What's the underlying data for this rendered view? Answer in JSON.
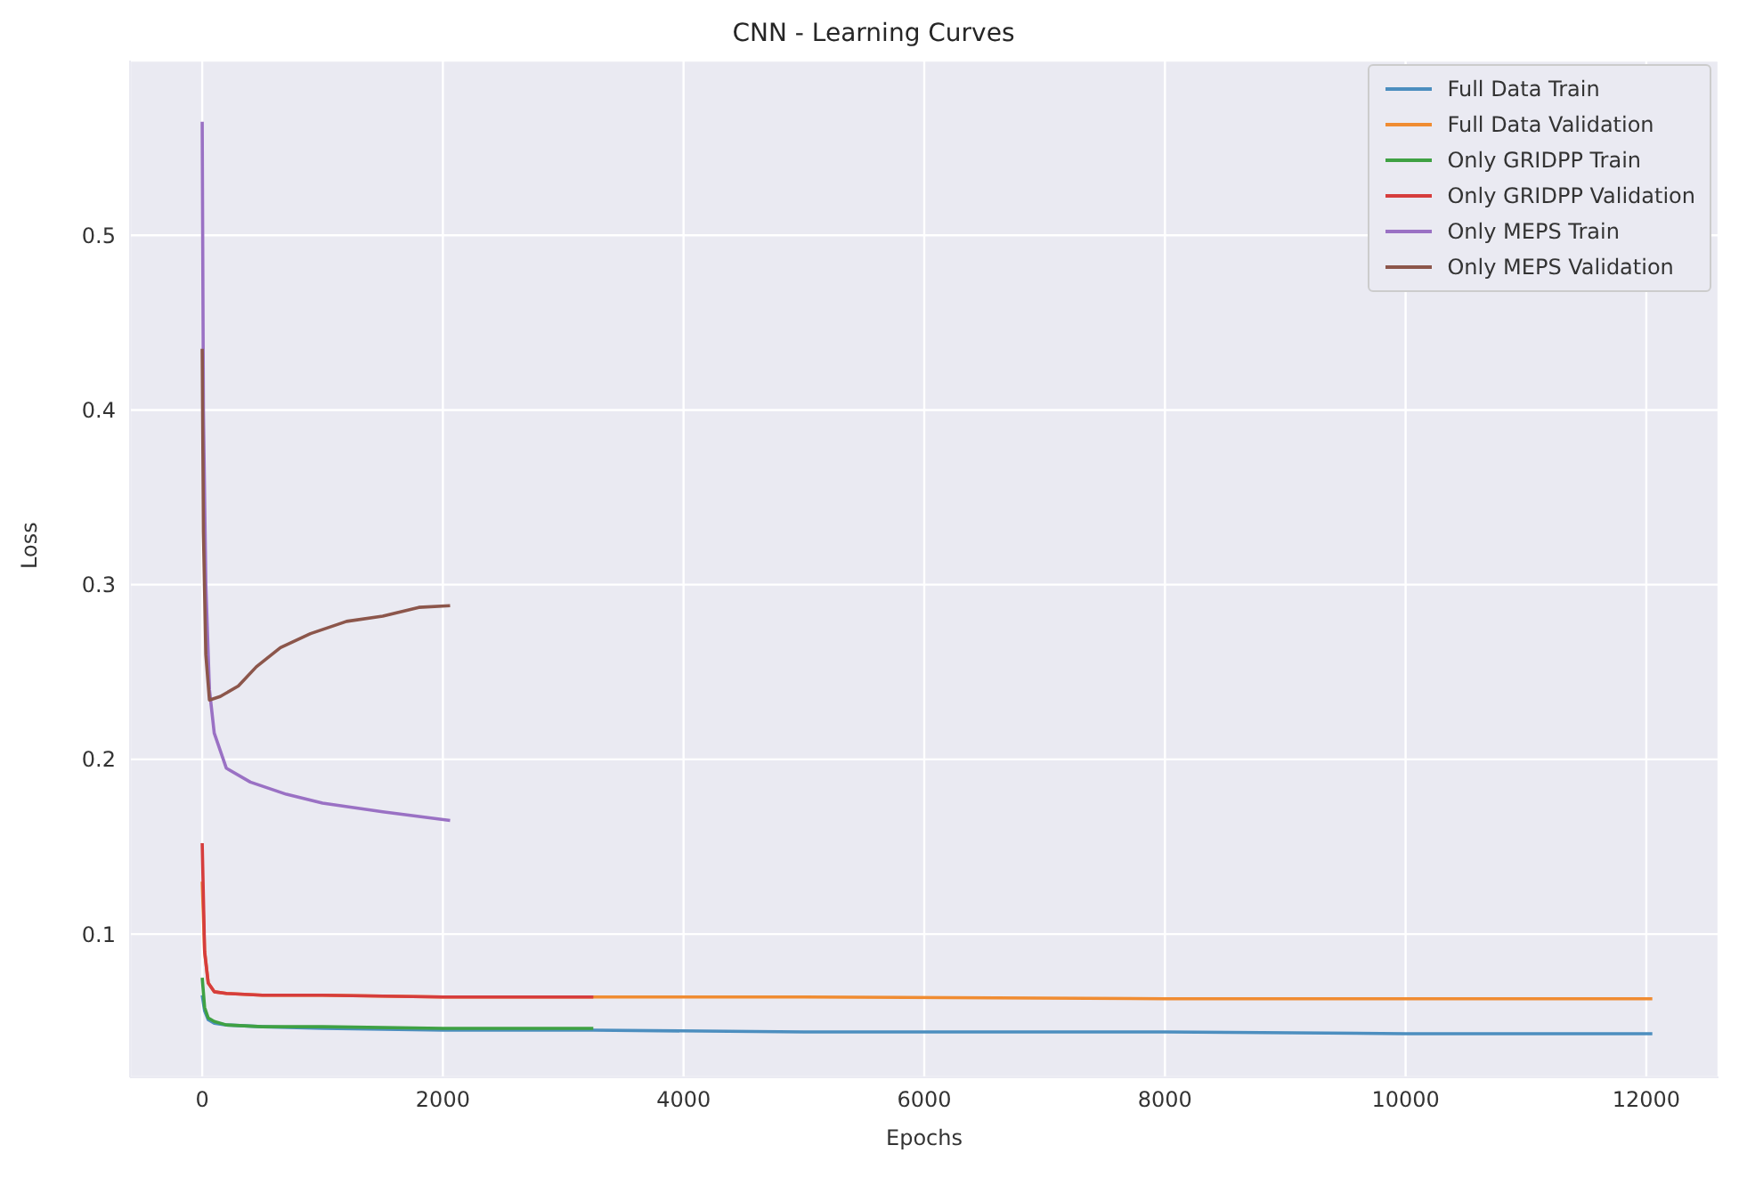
{
  "chart_data": {
    "type": "line",
    "title": "CNN - Learning Curves",
    "xlabel": "Epochs",
    "ylabel": "Loss",
    "xlim": [
      -600,
      12600
    ],
    "ylim": [
      0.018,
      0.6
    ],
    "xticks": [
      0,
      2000,
      4000,
      6000,
      8000,
      10000,
      12000
    ],
    "yticks": [
      0.1,
      0.2,
      0.3,
      0.4,
      0.5
    ],
    "grid": true,
    "legend": "top right",
    "marker": "none",
    "line_style": "solid",
    "series": [
      {
        "name": "Full Data Train",
        "color": "#4c8ebf",
        "x": [
          0,
          20,
          50,
          100,
          200,
          500,
          1000,
          2000,
          3250,
          5000,
          8000,
          10000,
          12050
        ],
        "values": [
          0.065,
          0.056,
          0.051,
          0.049,
          0.048,
          0.047,
          0.046,
          0.045,
          0.045,
          0.044,
          0.044,
          0.043,
          0.043
        ]
      },
      {
        "name": "Full Data Validation",
        "color": "#f08c32",
        "x": [
          0,
          20,
          50,
          100,
          200,
          500,
          1000,
          2000,
          3250,
          5000,
          8000,
          10000,
          12050
        ],
        "values": [
          0.13,
          0.09,
          0.072,
          0.067,
          0.066,
          0.065,
          0.065,
          0.064,
          0.064,
          0.064,
          0.063,
          0.063,
          0.063
        ]
      },
      {
        "name": "Only GRIDPP Train",
        "color": "#3fa143",
        "x": [
          0,
          20,
          50,
          100,
          200,
          500,
          1000,
          2000,
          3250
        ],
        "values": [
          0.075,
          0.058,
          0.052,
          0.05,
          0.048,
          0.047,
          0.047,
          0.046,
          0.046
        ]
      },
      {
        "name": "Only GRIDPP Validation",
        "color": "#d63d3d",
        "x": [
          0,
          20,
          50,
          100,
          200,
          500,
          1000,
          2000,
          3250
        ],
        "values": [
          0.152,
          0.09,
          0.072,
          0.067,
          0.066,
          0.065,
          0.065,
          0.064,
          0.064
        ]
      },
      {
        "name": "Only MEPS Train",
        "color": "#9a71c4",
        "x": [
          0,
          10,
          30,
          60,
          100,
          200,
          400,
          700,
          1000,
          1500,
          2060
        ],
        "values": [
          0.565,
          0.4,
          0.3,
          0.24,
          0.215,
          0.195,
          0.187,
          0.18,
          0.175,
          0.17,
          0.165
        ]
      },
      {
        "name": "Only MEPS Validation",
        "color": "#8c564b",
        "x": [
          0,
          10,
          30,
          60,
          150,
          300,
          450,
          650,
          900,
          1200,
          1500,
          1800,
          2060
        ],
        "values": [
          0.435,
          0.33,
          0.26,
          0.234,
          0.236,
          0.242,
          0.253,
          0.264,
          0.272,
          0.279,
          0.282,
          0.287,
          0.288
        ]
      }
    ]
  }
}
